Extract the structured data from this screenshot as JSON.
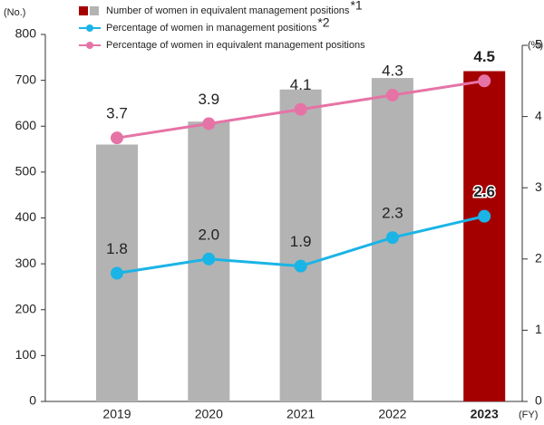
{
  "chart_data": {
    "type": "bar",
    "y_label": "(No.)",
    "y2_label": "(%)",
    "x_label": "(FY)",
    "categories": [
      "2019",
      "2020",
      "2021",
      "2022",
      "2023"
    ],
    "ylim": [
      0,
      800
    ],
    "yticks": [
      0,
      100,
      200,
      300,
      400,
      500,
      600,
      700,
      800
    ],
    "y2lim": [
      0,
      5
    ],
    "y2ticks": [
      0,
      1,
      2,
      3,
      4,
      5
    ],
    "series": [
      {
        "name": "Number of women in equivalent management positions",
        "footnote": "*1",
        "type": "bar",
        "color": "#b3b3b3",
        "colors": [
          "#b3b3b3",
          "#b3b3b3",
          "#b3b3b3",
          "#b3b3b3",
          "#a50000"
        ],
        "values": [
          560,
          610,
          680,
          705,
          720
        ]
      },
      {
        "name": "Percentage of women in management positions",
        "footnote": "*2",
        "type": "line",
        "axis": "y2",
        "color": "#1ab4e6",
        "values": [
          1.8,
          2.0,
          1.9,
          2.3,
          2.6
        ],
        "value_labels": [
          "1.8",
          "2.0",
          "1.9",
          "2.3",
          "2.6"
        ]
      },
      {
        "name": "Percentage of women in equivalent management positions",
        "type": "line",
        "axis": "y2",
        "color": "#e673a6",
        "values": [
          3.7,
          3.9,
          4.1,
          4.3,
          4.5
        ]
      }
    ]
  }
}
